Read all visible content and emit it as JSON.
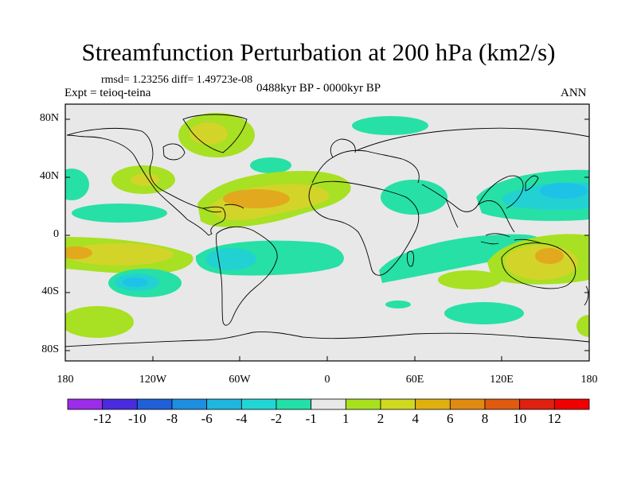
{
  "title": "Streamfunction Perturbation at 200 hPa (km2/s)",
  "stats_line": "rmsd= 1.23256 diff= 1.49723e-08",
  "expt_line": "Expt = teioq-teina",
  "period_line": "0488kyr BP - 0000kyr BP",
  "season": "ANN",
  "map": {
    "lat_labels": [
      "80N",
      "40N",
      "0",
      "40S",
      "80S"
    ],
    "lon_labels": [
      "180",
      "120W",
      "60W",
      "0",
      "60E",
      "120E",
      "180"
    ],
    "background_color": "#e8e8e8"
  },
  "colorbar": {
    "labels": [
      "-12",
      "-10",
      "-8",
      "-6",
      "-4",
      "-2",
      "-1",
      "1",
      "2",
      "4",
      "6",
      "8",
      "10",
      "12"
    ],
    "colors": [
      "#9b2ce8",
      "#4a2be0",
      "#1f5fd8",
      "#1e8ee0",
      "#1fb6e0",
      "#22d6d6",
      "#22e0a8",
      "#e8e8e8",
      "#a8e020",
      "#d0d820",
      "#e0b010",
      "#e08a10",
      "#e05a10",
      "#e02010",
      "#f00000"
    ]
  },
  "legend_colors": {
    "neg1": "#27e0a6",
    "neg2": "#22d2d2",
    "neg4": "#1ec2e6",
    "pos1": "#a8e023",
    "pos2": "#d2d42a",
    "pos4": "#e2a81e"
  }
}
